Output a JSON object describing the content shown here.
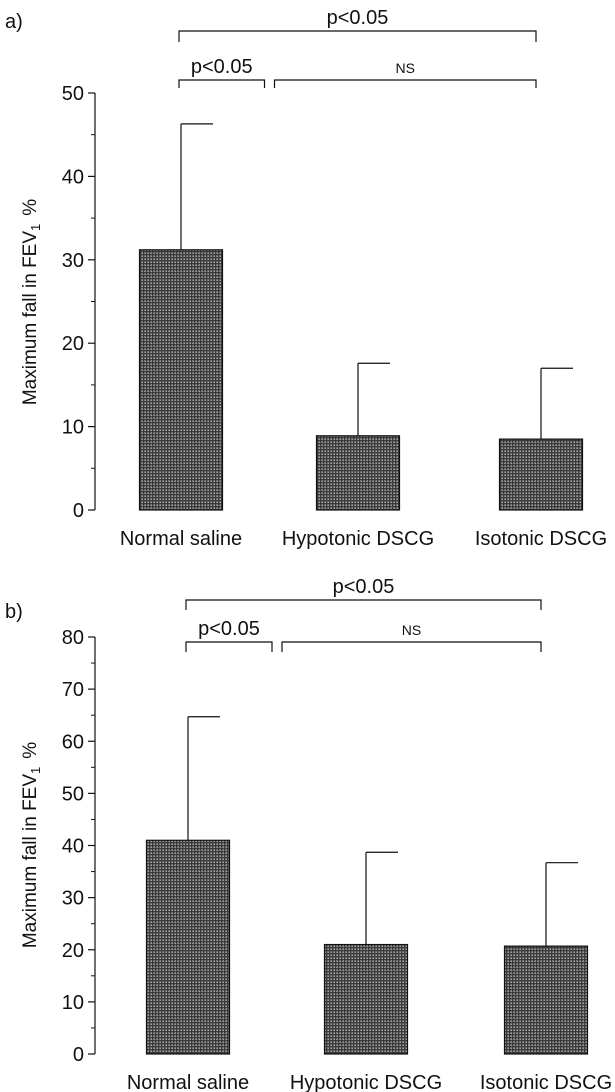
{
  "chart_data": [
    {
      "panel_label": "a)",
      "type": "bar",
      "ylabel_main": "Maximum fall in FEV",
      "ylabel_sub": "1",
      "ylabel_unit": "%",
      "categories": [
        "Normal saline",
        "Hypotonic DSCG",
        "Isotonic DSCG"
      ],
      "values": [
        31.2,
        8.9,
        8.5
      ],
      "error_upper": [
        46.3,
        17.6,
        17.0
      ],
      "ylim": [
        0,
        50
      ],
      "yticks": [
        0,
        10,
        20,
        30,
        40,
        50
      ],
      "ytick_labels": [
        "0",
        "10",
        "20",
        "30",
        "40",
        "50"
      ],
      "comparisons": [
        {
          "from": 0,
          "to": 1,
          "label": "p<0.05"
        },
        {
          "from": 1,
          "to": 2,
          "label": "NS"
        },
        {
          "from": 0,
          "to": 2,
          "label": "p<0.05"
        }
      ]
    },
    {
      "panel_label": "b)",
      "type": "bar",
      "ylabel_main": "Maximum fall in FEV",
      "ylabel_sub": "1",
      "ylabel_unit": "%",
      "categories": [
        "Normal saline",
        "Hypotonic DSCG",
        "Isotonic DSCG"
      ],
      "values": [
        41.0,
        21.0,
        20.7
      ],
      "error_upper": [
        64.7,
        38.7,
        36.7
      ],
      "ylim": [
        0,
        80
      ],
      "yticks": [
        0,
        10,
        20,
        30,
        40,
        50,
        60,
        70,
        80
      ],
      "ytick_labels": [
        "0",
        "10",
        "20",
        "30",
        "40",
        "50",
        "60",
        "70",
        "80"
      ],
      "comparisons": [
        {
          "from": 0,
          "to": 1,
          "label": "p<0.05"
        },
        {
          "from": 1,
          "to": 2,
          "label": "NS"
        },
        {
          "from": 0,
          "to": 2,
          "label": "p<0.05"
        }
      ]
    }
  ],
  "colors": {
    "bar_fill": "#3a3a3a",
    "bar_dots": "#d9d9d9",
    "ink": "#111111"
  }
}
